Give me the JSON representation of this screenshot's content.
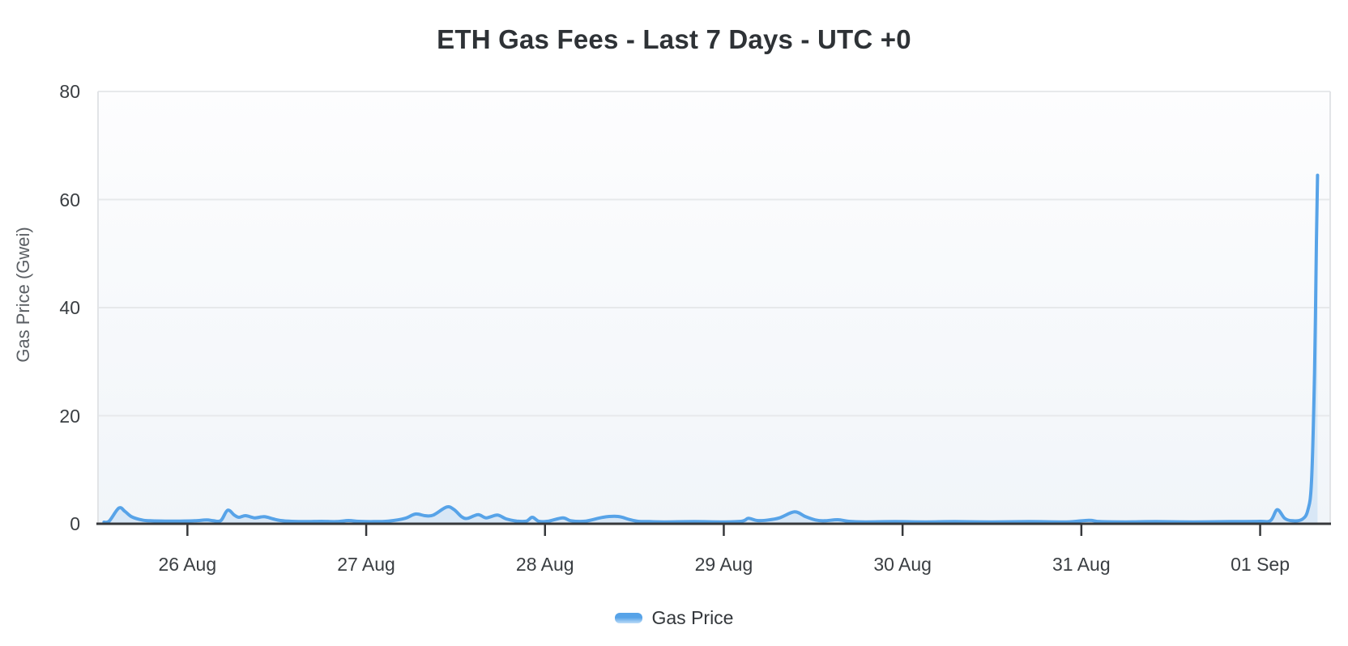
{
  "legend": {
    "label": "Gas Price"
  },
  "colors": {
    "line": "#57a3e8",
    "area_fill": "rgba(87,163,232,0.16)",
    "axis": "#36383b",
    "grid": "#e7e9eb",
    "plot_border": "#e2e4e7",
    "plot_bg_top": "#fdfdfe",
    "plot_bg_bottom": "#f1f5f9",
    "swatch_top": "#57a3e8",
    "swatch_bottom": "#bddcf7"
  },
  "chart_data": {
    "type": "line",
    "title": "ETH Gas Fees - Last 7 Days - UTC +0",
    "xlabel": "",
    "ylabel": "Gas Price (Gwei)",
    "ylim": [
      0,
      80
    ],
    "y_ticks": [
      80,
      60,
      40,
      20,
      0
    ],
    "grid": "horizontal only",
    "legend_position": "bottom center",
    "x_unit": "hours since 25 Aug ~12:00 UTC",
    "x_domain_hours": [
      0,
      165.4
    ],
    "x_ticks": [
      {
        "label": "26 Aug",
        "hour": 12
      },
      {
        "label": "27 Aug",
        "hour": 36
      },
      {
        "label": "28 Aug",
        "hour": 60
      },
      {
        "label": "29 Aug",
        "hour": 84
      },
      {
        "label": "30 Aug",
        "hour": 108
      },
      {
        "label": "31 Aug",
        "hour": 132
      },
      {
        "label": "01 Sep",
        "hour": 156
      }
    ],
    "series": [
      {
        "name": "Gas Price",
        "points": [
          [
            0.8,
            0.3
          ],
          [
            1.5,
            0.5
          ],
          [
            2.8,
            2.9
          ],
          [
            3.6,
            2.3
          ],
          [
            4.5,
            1.3
          ],
          [
            5.9,
            0.7
          ],
          [
            7,
            0.55
          ],
          [
            9,
            0.5
          ],
          [
            11,
            0.5
          ],
          [
            13,
            0.55
          ],
          [
            14.6,
            0.7
          ],
          [
            15.5,
            0.55
          ],
          [
            16.5,
            0.6
          ],
          [
            17.4,
            2.5
          ],
          [
            18.3,
            1.6
          ],
          [
            18.9,
            1.2
          ],
          [
            19.8,
            1.5
          ],
          [
            21,
            1.1
          ],
          [
            22.3,
            1.3
          ],
          [
            23.5,
            0.9
          ],
          [
            24.5,
            0.6
          ],
          [
            26,
            0.45
          ],
          [
            28,
            0.4
          ],
          [
            30,
            0.45
          ],
          [
            32,
            0.4
          ],
          [
            33.6,
            0.6
          ],
          [
            35,
            0.45
          ],
          [
            37,
            0.4
          ],
          [
            39,
            0.5
          ],
          [
            41.2,
            1.0
          ],
          [
            42.6,
            1.8
          ],
          [
            43.9,
            1.5
          ],
          [
            45,
            1.6
          ],
          [
            46.8,
            3.1
          ],
          [
            47.8,
            2.6
          ],
          [
            48.8,
            1.3
          ],
          [
            49.6,
            1.0
          ],
          [
            51,
            1.7
          ],
          [
            52.1,
            1.1
          ],
          [
            53.6,
            1.6
          ],
          [
            54.8,
            0.9
          ],
          [
            56.2,
            0.5
          ],
          [
            57.5,
            0.5
          ],
          [
            58.3,
            1.2
          ],
          [
            59.2,
            0.45
          ],
          [
            60.5,
            0.5
          ],
          [
            62.4,
            1.1
          ],
          [
            63.5,
            0.55
          ],
          [
            65.5,
            0.5
          ],
          [
            67.8,
            1.2
          ],
          [
            69.8,
            1.35
          ],
          [
            71.3,
            0.8
          ],
          [
            72.5,
            0.45
          ],
          [
            74,
            0.4
          ],
          [
            76,
            0.35
          ],
          [
            80,
            0.4
          ],
          [
            84,
            0.35
          ],
          [
            86.5,
            0.5
          ],
          [
            87.3,
            1.0
          ],
          [
            88.5,
            0.6
          ],
          [
            90,
            0.7
          ],
          [
            91.5,
            1.1
          ],
          [
            93.5,
            2.2
          ],
          [
            95,
            1.3
          ],
          [
            96.3,
            0.7
          ],
          [
            97.5,
            0.55
          ],
          [
            99.3,
            0.75
          ],
          [
            100.8,
            0.45
          ],
          [
            103,
            0.35
          ],
          [
            107,
            0.4
          ],
          [
            111,
            0.35
          ],
          [
            115,
            0.4
          ],
          [
            120,
            0.35
          ],
          [
            125,
            0.4
          ],
          [
            130,
            0.35
          ],
          [
            133,
            0.65
          ],
          [
            134.5,
            0.4
          ],
          [
            138,
            0.35
          ],
          [
            142,
            0.4
          ],
          [
            147,
            0.35
          ],
          [
            152,
            0.4
          ],
          [
            156,
            0.45
          ],
          [
            157.4,
            0.6
          ],
          [
            158.3,
            2.6
          ],
          [
            159.3,
            1.0
          ],
          [
            160.3,
            0.55
          ],
          [
            161.6,
            0.8
          ],
          [
            162.4,
            2.5
          ],
          [
            162.9,
            8
          ],
          [
            163.3,
            28
          ],
          [
            163.55,
            52
          ],
          [
            163.7,
            64.5
          ]
        ]
      }
    ]
  }
}
